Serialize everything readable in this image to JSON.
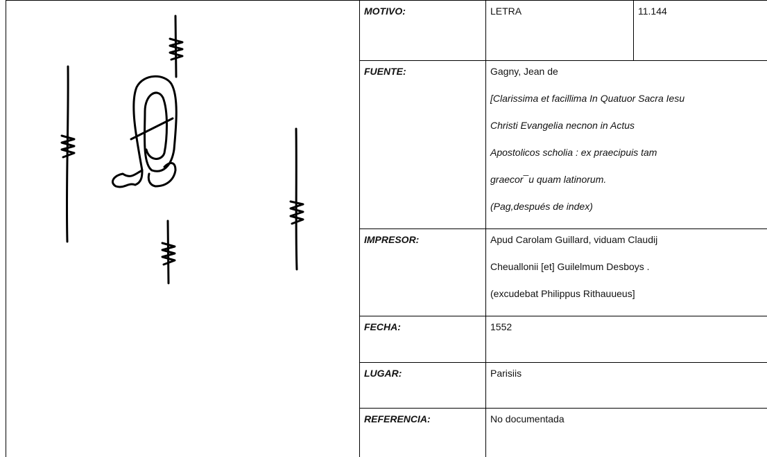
{
  "table": {
    "rows": [
      {
        "label": "MOTIVO:",
        "lines": [
          "LETRA"
        ],
        "extra": "11.144"
      },
      {
        "label": "FUENTE:",
        "lines": [
          "Gagny, Jean de",
          "[Clarissima et facillima In Quatuor Sacra Iesu",
          "Christi Evangelia necnon in Actus",
          "Apostolicos scholia : ex praecipuis tam",
          "graecor¯u quam latinorum.",
          "(Pag,después de index)"
        ]
      },
      {
        "label": "IMPRESOR:",
        "lines": [
          "Apud Carolam Guillard, viduam Claudij",
          "Cheuallonii [et] Guilelmum Desboys .",
          "(excudebat Philippus Rithauueus]"
        ]
      },
      {
        "label": "FECHA:",
        "lines": [
          "1552"
        ]
      },
      {
        "label": "LUGAR:",
        "lines": [
          "Parisiis"
        ]
      },
      {
        "label": "REFERENCIA:",
        "lines": [
          "No documentada"
        ]
      }
    ]
  }
}
